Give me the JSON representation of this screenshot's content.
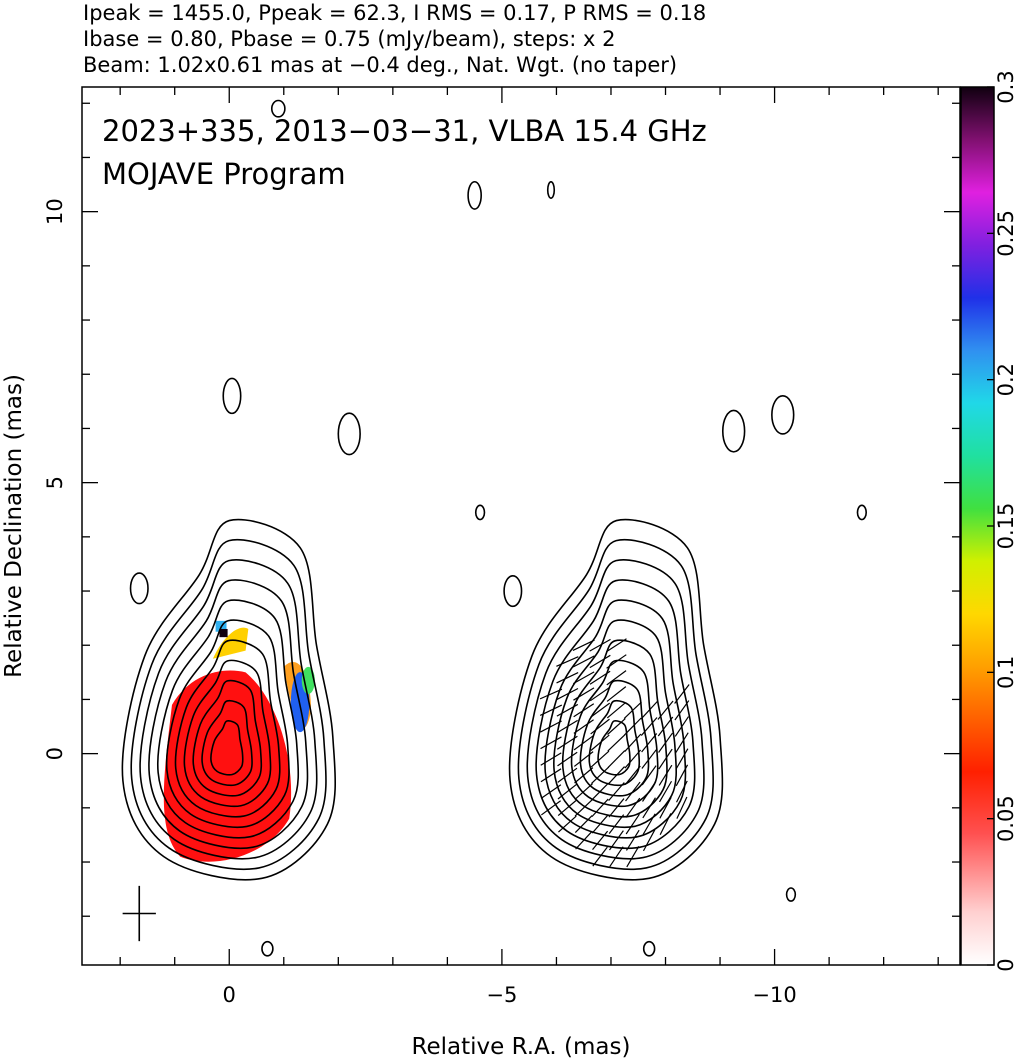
{
  "header": {
    "line1": "Ipeak = 1455.0, Ppeak = 62.3, I RMS = 0.17, P RMS = 0.18",
    "line2": "Ibase = 0.80, Pbase = 0.75 (mJy/beam), steps: x 2",
    "line3": "Beam: 1.02x0.61 mas at −0.4 deg., Nat. Wgt. (no taper)"
  },
  "chart_data": {
    "type": "contour",
    "title": "2023+335, 2013−03−31, VLBA 15.4 GHz",
    "subtitle": "MOJAVE Program",
    "xlabel": "Relative R.A. (mas)",
    "ylabel": "Relative Declination (mas)",
    "xlim": [
      2.7,
      -13.4
    ],
    "ylim": [
      -3.9,
      12.3
    ],
    "x_ticks": [
      0,
      -5,
      -10
    ],
    "x_tick_labels": [
      "0",
      "−5",
      "−10"
    ],
    "y_ticks": [
      0,
      5,
      10
    ],
    "y_tick_labels": [
      "0",
      "5",
      "10"
    ],
    "colorbar": {
      "min": 0,
      "max": 0.3,
      "ticks": [
        0,
        0.05,
        0.1,
        0.15,
        0.2,
        0.25,
        0.3
      ],
      "tick_labels": [
        "0",
        "0.05",
        "0.1",
        "0.15",
        "0.2",
        "0.25",
        "0.3"
      ]
    },
    "panels": [
      {
        "name": "",
        "center_x": 0.0,
        "center_y": 0.0
      },
      {
        "name": "",
        "center_x": -7.1,
        "center_y": 0.0
      }
    ],
    "contour_levels_mJy": [
      0.8,
      1.6,
      3.2,
      6.4,
      12.8,
      25.6,
      51.2,
      102.4,
      204.8,
      409.6,
      819.2
    ],
    "ipeak_mJy": 1455.0,
    "beam": {
      "major_mas": 1.02,
      "minor_mas": 0.61,
      "pa_deg": -0.4,
      "x": 1.65,
      "y": -2.95
    }
  }
}
